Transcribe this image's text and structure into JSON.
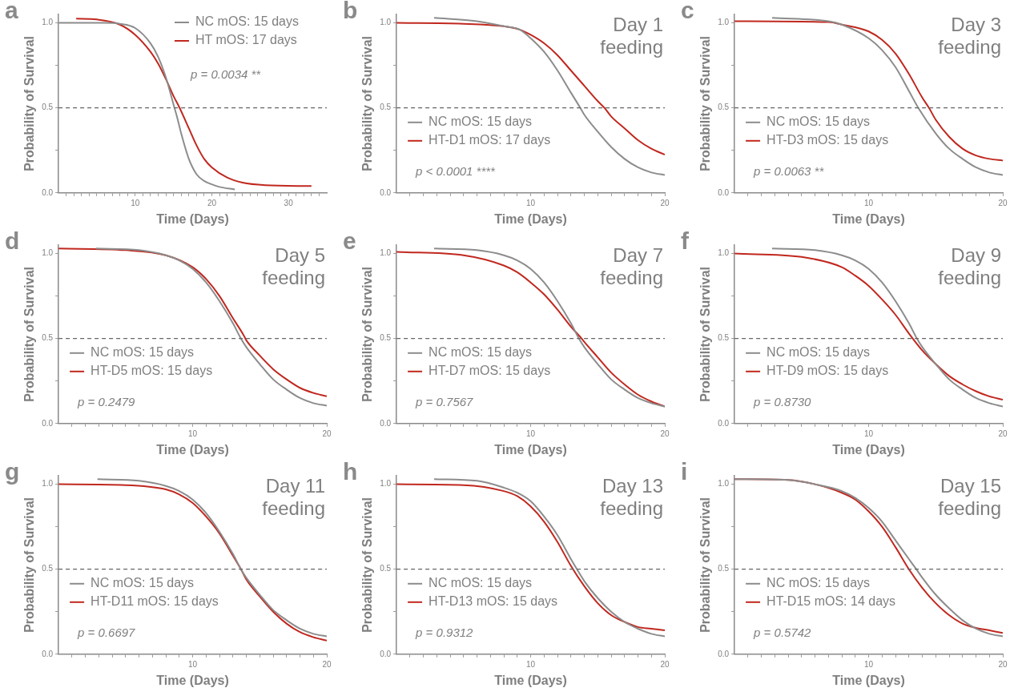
{
  "chart_data": [
    {
      "type": "line",
      "title": "a",
      "xlabel": "Time (Days)",
      "ylabel": "Probability of Survival",
      "xlim": [
        0,
        35
      ],
      "ylim": [
        0,
        1.05
      ],
      "xticks": [
        {
          "value": 1,
          "label": null
        },
        {
          "value": 2,
          "label": null
        },
        {
          "value": 3,
          "label": null
        },
        {
          "value": 4,
          "label": null
        },
        {
          "value": 5,
          "label": null
        },
        {
          "value": 6,
          "label": null
        },
        {
          "value": 7,
          "label": null
        },
        {
          "value": 8,
          "label": null
        },
        {
          "value": 9,
          "label": null
        },
        10,
        {
          "value": 11,
          "label": null
        },
        {
          "value": 12,
          "label": null
        },
        {
          "value": 13,
          "label": null
        },
        {
          "value": 14,
          "label": null
        },
        {
          "value": 15,
          "label": null
        },
        {
          "value": 16,
          "label": null
        },
        {
          "value": 17,
          "label": null
        },
        {
          "value": 18,
          "label": null
        },
        {
          "value": 19,
          "label": null
        },
        20,
        {
          "value": 21,
          "label": null
        },
        {
          "value": 22,
          "label": null
        },
        {
          "value": 23,
          "label": null
        },
        {
          "value": 24,
          "label": null
        },
        {
          "value": 25,
          "label": null
        },
        {
          "value": 26,
          "label": null
        },
        {
          "value": 27,
          "label": null
        },
        {
          "value": 28,
          "label": null
        },
        {
          "value": 29,
          "label": null
        },
        30,
        {
          "value": 31,
          "label": null
        },
        {
          "value": 32,
          "label": null
        },
        {
          "value": 33,
          "label": null
        },
        {
          "value": 34,
          "label": null
        }
      ],
      "yticks": [
        {
          "value": 0,
          "label": "0.0"
        },
        {
          "value": 0.25,
          "label": null
        },
        {
          "value": 0.5,
          "label": "0.5"
        },
        {
          "value": 0.75,
          "label": null
        },
        {
          "value": 1,
          "label": "1.0"
        }
      ],
      "legend": "top right",
      "grid": false,
      "ref_lines": [
        {
          "axis": "y",
          "value": 0.5,
          "color": "#666666",
          "line_style": "dashed"
        }
      ],
      "annotations": [
        "p = 0.0034 **"
      ],
      "series": [
        {
          "name": "NC mOS: 15 days",
          "color": "#8c8c8c",
          "x": [
            0,
            6,
            8,
            10,
            12,
            13,
            14,
            15,
            15.5,
            16,
            17,
            18,
            19,
            20,
            21,
            23
          ],
          "values": [
            1.0,
            1.0,
            0.995,
            0.97,
            0.88,
            0.8,
            0.68,
            0.52,
            0.44,
            0.35,
            0.2,
            0.11,
            0.07,
            0.05,
            0.035,
            0.02
          ]
        },
        {
          "name": "HT mOS: 17 days",
          "color": "#c0281f",
          "x": [
            2.3,
            5,
            8,
            10,
            12,
            13,
            14,
            15,
            15.8,
            17,
            18,
            19,
            20,
            22,
            24,
            27,
            33
          ],
          "values": [
            1.025,
            1.02,
            0.99,
            0.93,
            0.83,
            0.76,
            0.67,
            0.57,
            0.5,
            0.38,
            0.28,
            0.2,
            0.15,
            0.09,
            0.06,
            0.045,
            0.04
          ]
        }
      ]
    },
    {
      "type": "line",
      "title": "b",
      "xlabel": "Time (Days)",
      "ylabel": "Probability of Survival",
      "xlim": [
        0,
        20
      ],
      "ylim": [
        0,
        1.05
      ],
      "xticks": [
        {
          "value": 1,
          "label": null
        },
        {
          "value": 2,
          "label": null
        },
        {
          "value": 3,
          "label": null
        },
        {
          "value": 4,
          "label": null
        },
        {
          "value": 5,
          "label": null
        },
        {
          "value": 6,
          "label": null
        },
        {
          "value": 7,
          "label": null
        },
        {
          "value": 8,
          "label": null
        },
        {
          "value": 9,
          "label": null
        },
        10,
        {
          "value": 11,
          "label": null
        },
        {
          "value": 12,
          "label": null
        },
        {
          "value": 13,
          "label": null
        },
        {
          "value": 14,
          "label": null
        },
        {
          "value": 15,
          "label": null
        },
        {
          "value": 16,
          "label": null
        },
        {
          "value": 17,
          "label": null
        },
        {
          "value": 18,
          "label": null
        },
        {
          "value": 19,
          "label": null
        },
        20
      ],
      "yticks": [
        {
          "value": 0,
          "label": "0.0"
        },
        {
          "value": 0.25,
          "label": null
        },
        {
          "value": 0.5,
          "label": "0.5"
        },
        {
          "value": 0.75,
          "label": null
        },
        {
          "value": 1,
          "label": "1.0"
        }
      ],
      "legend": "bottom left",
      "grid": false,
      "ref_lines": [
        {
          "axis": "y",
          "value": 0.5,
          "color": "#666666",
          "line_style": "dashed"
        }
      ],
      "annotations": [
        "Day 1 feeding",
        "p < 0.0001 ****"
      ],
      "series": [
        {
          "name": "NC mOS: 15 days",
          "color": "#8c8c8c",
          "x": [
            2.8,
            6,
            8,
            9.2,
            10,
            11,
            12,
            13,
            13.7,
            14,
            15,
            16,
            17,
            18,
            19,
            20
          ],
          "values": [
            1.03,
            1.01,
            0.98,
            0.96,
            0.91,
            0.83,
            0.72,
            0.59,
            0.5,
            0.46,
            0.36,
            0.27,
            0.2,
            0.15,
            0.12,
            0.105
          ]
        },
        {
          "name": "HT-D1 mOS: 17 days",
          "color": "#c0281f",
          "x": [
            0,
            5,
            8,
            9.2,
            10,
            11,
            12,
            13,
            14,
            15,
            15.5,
            16,
            17,
            18,
            19,
            20
          ],
          "values": [
            1.0,
            0.995,
            0.98,
            0.96,
            0.93,
            0.88,
            0.81,
            0.72,
            0.63,
            0.54,
            0.5,
            0.45,
            0.38,
            0.31,
            0.26,
            0.225
          ]
        }
      ]
    },
    {
      "type": "line",
      "title": "c",
      "xlabel": "Time (Days)",
      "ylabel": "Probability of Survival",
      "xlim": [
        0,
        20
      ],
      "ylim": [
        0,
        1.05
      ],
      "xticks": [
        {
          "value": 1,
          "label": null
        },
        {
          "value": 2,
          "label": null
        },
        {
          "value": 3,
          "label": null
        },
        {
          "value": 4,
          "label": null
        },
        {
          "value": 5,
          "label": null
        },
        {
          "value": 6,
          "label": null
        },
        {
          "value": 7,
          "label": null
        },
        {
          "value": 8,
          "label": null
        },
        {
          "value": 9,
          "label": null
        },
        10,
        {
          "value": 11,
          "label": null
        },
        {
          "value": 12,
          "label": null
        },
        {
          "value": 13,
          "label": null
        },
        {
          "value": 14,
          "label": null
        },
        {
          "value": 15,
          "label": null
        },
        {
          "value": 16,
          "label": null
        },
        {
          "value": 17,
          "label": null
        },
        {
          "value": 18,
          "label": null
        },
        {
          "value": 19,
          "label": null
        },
        20
      ],
      "yticks": [
        {
          "value": 0,
          "label": "0.0"
        },
        {
          "value": 0.25,
          "label": null
        },
        {
          "value": 0.5,
          "label": "0.5"
        },
        {
          "value": 0.75,
          "label": null
        },
        {
          "value": 1,
          "label": "1.0"
        }
      ],
      "legend": "bottom left",
      "grid": false,
      "ref_lines": [
        {
          "axis": "y",
          "value": 0.5,
          "color": "#666666",
          "line_style": "dashed"
        }
      ],
      "annotations": [
        "Day 3 feeding",
        "p = 0.0063 **"
      ],
      "series": [
        {
          "name": "NC mOS: 15 days",
          "color": "#8c8c8c",
          "x": [
            2.8,
            7,
            8,
            10,
            11,
            12,
            13,
            13.7,
            15,
            16,
            17,
            18,
            19,
            20
          ],
          "values": [
            1.03,
            1.01,
            0.99,
            0.91,
            0.84,
            0.74,
            0.6,
            0.5,
            0.35,
            0.26,
            0.2,
            0.15,
            0.12,
            0.105
          ]
        },
        {
          "name": "HT-D3 mOS: 15 days",
          "color": "#c0281f",
          "x": [
            0,
            7,
            8,
            10,
            11,
            12,
            13,
            14,
            14.5,
            15,
            16,
            17,
            18,
            19,
            20
          ],
          "values": [
            1.01,
            1.005,
            0.99,
            0.95,
            0.9,
            0.82,
            0.7,
            0.56,
            0.5,
            0.43,
            0.33,
            0.26,
            0.22,
            0.2,
            0.19
          ]
        }
      ]
    },
    {
      "type": "line",
      "title": "d",
      "xlabel": "Time (Days)",
      "ylabel": "Probability of Survival",
      "xlim": [
        0,
        20
      ],
      "ylim": [
        0,
        1.05
      ],
      "xticks": [
        {
          "value": 1,
          "label": null
        },
        {
          "value": 2,
          "label": null
        },
        {
          "value": 3,
          "label": null
        },
        {
          "value": 4,
          "label": null
        },
        {
          "value": 5,
          "label": null
        },
        {
          "value": 6,
          "label": null
        },
        {
          "value": 7,
          "label": null
        },
        {
          "value": 8,
          "label": null
        },
        {
          "value": 9,
          "label": null
        },
        10,
        {
          "value": 11,
          "label": null
        },
        {
          "value": 12,
          "label": null
        },
        {
          "value": 13,
          "label": null
        },
        {
          "value": 14,
          "label": null
        },
        {
          "value": 15,
          "label": null
        },
        {
          "value": 16,
          "label": null
        },
        {
          "value": 17,
          "label": null
        },
        {
          "value": 18,
          "label": null
        },
        {
          "value": 19,
          "label": null
        },
        20
      ],
      "yticks": [
        {
          "value": 0,
          "label": "0.0"
        },
        {
          "value": 0.25,
          "label": null
        },
        {
          "value": 0.5,
          "label": "0.5"
        },
        {
          "value": 0.75,
          "label": null
        },
        {
          "value": 1,
          "label": "1.0"
        }
      ],
      "legend": "bottom left",
      "grid": false,
      "ref_lines": [
        {
          "axis": "y",
          "value": 0.5,
          "color": "#666666",
          "line_style": "dashed"
        }
      ],
      "annotations": [
        "Day 5 feeding",
        "p = 0.2479"
      ],
      "series": [
        {
          "name": "NC mOS: 15 days",
          "color": "#8c8c8c",
          "x": [
            2.8,
            6,
            8,
            9,
            10,
            11,
            12,
            13,
            13.6,
            14,
            15,
            16,
            17,
            18,
            19,
            20
          ],
          "values": [
            1.03,
            1.02,
            0.99,
            0.96,
            0.91,
            0.83,
            0.72,
            0.59,
            0.5,
            0.45,
            0.35,
            0.26,
            0.2,
            0.15,
            0.12,
            0.105
          ]
        },
        {
          "name": "HT-D5 mOS: 15 days",
          "color": "#c0281f",
          "x": [
            0,
            5,
            8,
            10,
            11,
            12,
            13,
            13.8,
            14,
            15,
            16,
            17,
            18,
            19,
            20
          ],
          "values": [
            1.03,
            1.02,
            0.99,
            0.92,
            0.85,
            0.75,
            0.62,
            0.52,
            0.49,
            0.4,
            0.32,
            0.26,
            0.21,
            0.18,
            0.16
          ]
        }
      ]
    },
    {
      "type": "line",
      "title": "e",
      "xlabel": "Time (Days)",
      "ylabel": "Probability of Survival",
      "xlim": [
        0,
        20
      ],
      "ylim": [
        0,
        1.05
      ],
      "xticks": [
        {
          "value": 1,
          "label": null
        },
        {
          "value": 2,
          "label": null
        },
        {
          "value": 3,
          "label": null
        },
        {
          "value": 4,
          "label": null
        },
        {
          "value": 5,
          "label": null
        },
        {
          "value": 6,
          "label": null
        },
        {
          "value": 7,
          "label": null
        },
        {
          "value": 8,
          "label": null
        },
        {
          "value": 9,
          "label": null
        },
        10,
        {
          "value": 11,
          "label": null
        },
        {
          "value": 12,
          "label": null
        },
        {
          "value": 13,
          "label": null
        },
        {
          "value": 14,
          "label": null
        },
        {
          "value": 15,
          "label": null
        },
        {
          "value": 16,
          "label": null
        },
        {
          "value": 17,
          "label": null
        },
        {
          "value": 18,
          "label": null
        },
        {
          "value": 19,
          "label": null
        },
        20
      ],
      "yticks": [
        {
          "value": 0,
          "label": "0.0"
        },
        {
          "value": 0.25,
          "label": null
        },
        {
          "value": 0.5,
          "label": "0.5"
        },
        {
          "value": 0.75,
          "label": null
        },
        {
          "value": 1,
          "label": "1.0"
        }
      ],
      "legend": "bottom left",
      "grid": false,
      "ref_lines": [
        {
          "axis": "y",
          "value": 0.5,
          "color": "#666666",
          "line_style": "dashed"
        }
      ],
      "annotations": [
        "Day 7 feeding",
        "p = 0.7567"
      ],
      "series": [
        {
          "name": "NC mOS: 15 days",
          "color": "#8c8c8c",
          "x": [
            2.8,
            6,
            8,
            9,
            10,
            11,
            12,
            13,
            13.6,
            14,
            15,
            16,
            17,
            18,
            19,
            20
          ],
          "values": [
            1.03,
            1.02,
            0.99,
            0.96,
            0.91,
            0.83,
            0.72,
            0.59,
            0.5,
            0.45,
            0.35,
            0.26,
            0.2,
            0.15,
            0.12,
            0.1
          ]
        },
        {
          "name": "HT-D7 mOS: 15 days",
          "color": "#c0281f",
          "x": [
            0,
            5,
            8,
            9,
            10,
            11,
            12,
            13,
            13.8,
            14,
            15,
            16,
            17,
            18,
            19,
            20
          ],
          "values": [
            1.01,
            0.99,
            0.93,
            0.89,
            0.83,
            0.76,
            0.67,
            0.57,
            0.5,
            0.48,
            0.39,
            0.3,
            0.23,
            0.17,
            0.13,
            0.1
          ]
        }
      ]
    },
    {
      "type": "line",
      "title": "f",
      "xlabel": "Time (Days)",
      "ylabel": "Probability of Survival",
      "xlim": [
        0,
        20
      ],
      "ylim": [
        0,
        1.05
      ],
      "xticks": [
        {
          "value": 1,
          "label": null
        },
        {
          "value": 2,
          "label": null
        },
        {
          "value": 3,
          "label": null
        },
        {
          "value": 4,
          "label": null
        },
        {
          "value": 5,
          "label": null
        },
        {
          "value": 6,
          "label": null
        },
        {
          "value": 7,
          "label": null
        },
        {
          "value": 8,
          "label": null
        },
        {
          "value": 9,
          "label": null
        },
        10,
        {
          "value": 11,
          "label": null
        },
        {
          "value": 12,
          "label": null
        },
        {
          "value": 13,
          "label": null
        },
        {
          "value": 14,
          "label": null
        },
        {
          "value": 15,
          "label": null
        },
        {
          "value": 16,
          "label": null
        },
        {
          "value": 17,
          "label": null
        },
        {
          "value": 18,
          "label": null
        },
        {
          "value": 19,
          "label": null
        },
        20
      ],
      "yticks": [
        {
          "value": 0,
          "label": "0.0"
        },
        {
          "value": 0.25,
          "label": null
        },
        {
          "value": 0.5,
          "label": "0.5"
        },
        {
          "value": 0.75,
          "label": null
        },
        {
          "value": 1,
          "label": "1.0"
        }
      ],
      "legend": "bottom left",
      "grid": false,
      "ref_lines": [
        {
          "axis": "y",
          "value": 0.5,
          "color": "#666666",
          "line_style": "dashed"
        }
      ],
      "annotations": [
        "Day 9 feeding",
        "p = 0.8730"
      ],
      "series": [
        {
          "name": "NC mOS: 15 days",
          "color": "#8c8c8c",
          "x": [
            2.8,
            6,
            8,
            9,
            10,
            11,
            12,
            13,
            13.6,
            14,
            15,
            16,
            17,
            18,
            19,
            20
          ],
          "values": [
            1.03,
            1.02,
            0.99,
            0.96,
            0.91,
            0.83,
            0.72,
            0.59,
            0.5,
            0.45,
            0.35,
            0.26,
            0.2,
            0.15,
            0.12,
            0.1
          ]
        },
        {
          "name": "HT-D9 mOS: 15 days",
          "color": "#c0281f",
          "x": [
            0,
            5,
            8,
            9,
            10,
            11,
            12,
            13,
            14,
            15,
            16,
            17,
            18,
            19,
            20
          ],
          "values": [
            1.0,
            0.98,
            0.92,
            0.87,
            0.81,
            0.73,
            0.64,
            0.53,
            0.43,
            0.35,
            0.28,
            0.23,
            0.19,
            0.16,
            0.14
          ]
        }
      ]
    },
    {
      "type": "line",
      "title": "g",
      "xlabel": "Time (Days)",
      "ylabel": "Probability of Survival",
      "xlim": [
        0,
        20
      ],
      "ylim": [
        0,
        1.05
      ],
      "xticks": [
        {
          "value": 1,
          "label": null
        },
        {
          "value": 2,
          "label": null
        },
        {
          "value": 3,
          "label": null
        },
        {
          "value": 4,
          "label": null
        },
        {
          "value": 5,
          "label": null
        },
        {
          "value": 6,
          "label": null
        },
        {
          "value": 7,
          "label": null
        },
        {
          "value": 8,
          "label": null
        },
        {
          "value": 9,
          "label": null
        },
        10,
        {
          "value": 11,
          "label": null
        },
        {
          "value": 12,
          "label": null
        },
        {
          "value": 13,
          "label": null
        },
        {
          "value": 14,
          "label": null
        },
        {
          "value": 15,
          "label": null
        },
        {
          "value": 16,
          "label": null
        },
        {
          "value": 17,
          "label": null
        },
        {
          "value": 18,
          "label": null
        },
        {
          "value": 19,
          "label": null
        },
        20
      ],
      "yticks": [
        {
          "value": 0,
          "label": "0.0"
        },
        {
          "value": 0.25,
          "label": null
        },
        {
          "value": 0.5,
          "label": "0.5"
        },
        {
          "value": 0.75,
          "label": null
        },
        {
          "value": 1,
          "label": "1.0"
        }
      ],
      "legend": "bottom left",
      "grid": false,
      "ref_lines": [
        {
          "axis": "y",
          "value": 0.5,
          "color": "#666666",
          "line_style": "dashed"
        }
      ],
      "annotations": [
        "Day 11 feeding",
        "p = 0.6697"
      ],
      "series": [
        {
          "name": "NC mOS: 15 days",
          "color": "#8c8c8c",
          "x": [
            2.9,
            6,
            8,
            9,
            10,
            11,
            12,
            13,
            13.6,
            14,
            15,
            16,
            17,
            18,
            19,
            20
          ],
          "values": [
            1.03,
            1.02,
            0.99,
            0.96,
            0.91,
            0.83,
            0.72,
            0.59,
            0.5,
            0.45,
            0.35,
            0.26,
            0.2,
            0.15,
            0.12,
            0.105
          ]
        },
        {
          "name": "HT-D11 mOS: 15 days",
          "color": "#c0281f",
          "x": [
            0,
            5,
            8,
            9,
            10,
            11,
            12,
            13,
            13.6,
            14,
            15,
            16,
            17,
            18,
            19,
            20
          ],
          "values": [
            1.0,
            0.995,
            0.97,
            0.94,
            0.89,
            0.81,
            0.71,
            0.58,
            0.5,
            0.44,
            0.34,
            0.25,
            0.18,
            0.13,
            0.1,
            0.08
          ]
        }
      ]
    },
    {
      "type": "line",
      "title": "h",
      "xlabel": "Time (Days)",
      "ylabel": "Probability of Survival",
      "xlim": [
        0,
        20
      ],
      "ylim": [
        0,
        1.05
      ],
      "xticks": [
        {
          "value": 1,
          "label": null
        },
        {
          "value": 2,
          "label": null
        },
        {
          "value": 3,
          "label": null
        },
        {
          "value": 4,
          "label": null
        },
        {
          "value": 5,
          "label": null
        },
        {
          "value": 6,
          "label": null
        },
        {
          "value": 7,
          "label": null
        },
        {
          "value": 8,
          "label": null
        },
        {
          "value": 9,
          "label": null
        },
        10,
        {
          "value": 11,
          "label": null
        },
        {
          "value": 12,
          "label": null
        },
        {
          "value": 13,
          "label": null
        },
        {
          "value": 14,
          "label": null
        },
        {
          "value": 15,
          "label": null
        },
        {
          "value": 16,
          "label": null
        },
        {
          "value": 17,
          "label": null
        },
        {
          "value": 18,
          "label": null
        },
        {
          "value": 19,
          "label": null
        },
        20
      ],
      "yticks": [
        {
          "value": 0,
          "label": "0.0"
        },
        {
          "value": 0.25,
          "label": null
        },
        {
          "value": 0.5,
          "label": "0.5"
        },
        {
          "value": 0.75,
          "label": null
        },
        {
          "value": 1,
          "label": "1.0"
        }
      ],
      "legend": "bottom left",
      "grid": false,
      "ref_lines": [
        {
          "axis": "y",
          "value": 0.5,
          "color": "#666666",
          "line_style": "dashed"
        }
      ],
      "annotations": [
        "Day 13 feeding",
        "p = 0.9312"
      ],
      "series": [
        {
          "name": "NC mOS: 15 days",
          "color": "#8c8c8c",
          "x": [
            2.8,
            6,
            8,
            9,
            10,
            11,
            12,
            13,
            13.45,
            14,
            15,
            16,
            17,
            18,
            19,
            20
          ],
          "values": [
            1.03,
            1.02,
            0.98,
            0.95,
            0.9,
            0.81,
            0.7,
            0.56,
            0.5,
            0.43,
            0.33,
            0.25,
            0.19,
            0.15,
            0.12,
            0.105
          ]
        },
        {
          "name": "HT-D13 mOS: 15 days",
          "color": "#c0281f",
          "x": [
            0,
            5,
            8,
            9,
            10,
            11,
            12,
            13,
            14,
            15,
            16,
            17,
            18,
            19,
            20
          ],
          "values": [
            1.0,
            0.995,
            0.96,
            0.93,
            0.87,
            0.78,
            0.66,
            0.52,
            0.4,
            0.3,
            0.23,
            0.19,
            0.16,
            0.15,
            0.14
          ]
        }
      ]
    },
    {
      "type": "line",
      "title": "i",
      "xlabel": "Time (Days)",
      "ylabel": "Probability of Survival",
      "xlim": [
        0,
        20
      ],
      "ylim": [
        0,
        1.05
      ],
      "xticks": [
        {
          "value": 1,
          "label": null
        },
        {
          "value": 2,
          "label": null
        },
        {
          "value": 3,
          "label": null
        },
        {
          "value": 4,
          "label": null
        },
        {
          "value": 5,
          "label": null
        },
        {
          "value": 6,
          "label": null
        },
        {
          "value": 7,
          "label": null
        },
        {
          "value": 8,
          "label": null
        },
        {
          "value": 9,
          "label": null
        },
        10,
        {
          "value": 11,
          "label": null
        },
        {
          "value": 12,
          "label": null
        },
        {
          "value": 13,
          "label": null
        },
        {
          "value": 14,
          "label": null
        },
        {
          "value": 15,
          "label": null
        },
        {
          "value": 16,
          "label": null
        },
        {
          "value": 17,
          "label": null
        },
        {
          "value": 18,
          "label": null
        },
        {
          "value": 19,
          "label": null
        },
        20
      ],
      "yticks": [
        {
          "value": 0,
          "label": "0.0"
        },
        {
          "value": 0.25,
          "label": null
        },
        {
          "value": 0.5,
          "label": "0.5"
        },
        {
          "value": 0.75,
          "label": null
        },
        {
          "value": 1,
          "label": "1.0"
        }
      ],
      "legend": "bottom left",
      "grid": false,
      "ref_lines": [
        {
          "axis": "y",
          "value": 0.5,
          "color": "#666666",
          "line_style": "dashed"
        }
      ],
      "annotations": [
        "Day 15 feeding",
        "p = 0.5742"
      ],
      "series": [
        {
          "name": "NC mOS: 15 days",
          "color": "#8c8c8c",
          "x": [
            0,
            4,
            6,
            8,
            9,
            10,
            11,
            12,
            13,
            13.55,
            14,
            15,
            16,
            17,
            18,
            19,
            20
          ],
          "values": [
            1.03,
            1.025,
            1.0,
            0.96,
            0.92,
            0.86,
            0.78,
            0.67,
            0.56,
            0.5,
            0.45,
            0.35,
            0.27,
            0.2,
            0.15,
            0.12,
            0.105
          ]
        },
        {
          "name": "HT-D15 mOS: 14 days",
          "color": "#c0281f",
          "x": [
            0,
            4,
            6,
            8,
            9,
            10,
            11,
            12,
            13,
            14,
            15,
            16,
            17,
            18,
            19,
            20
          ],
          "values": [
            1.03,
            1.025,
            1.0,
            0.95,
            0.91,
            0.84,
            0.75,
            0.63,
            0.5,
            0.39,
            0.3,
            0.23,
            0.18,
            0.155,
            0.14,
            0.125
          ]
        }
      ]
    }
  ]
}
